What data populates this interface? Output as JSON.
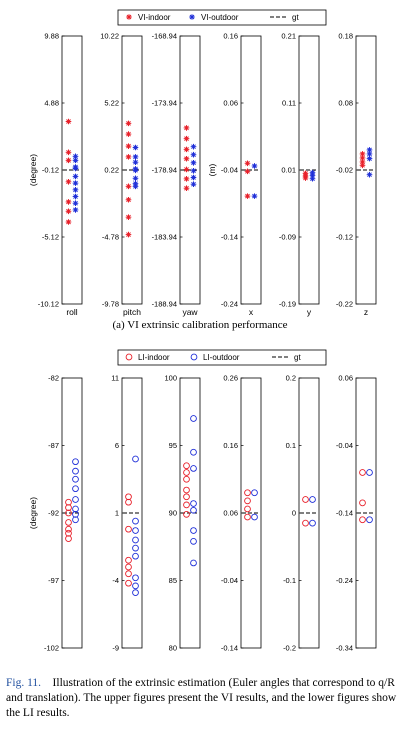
{
  "figure": {
    "caption_label": "Fig. 11.",
    "caption_text": "Illustration of the extrinsic estimation (Euler angles that correspond to q/R and translation). The upper figures present the VI results, and the lower figures show the LI results.",
    "colors": {
      "indoor": "#e8202a",
      "outdoor": "#1f2fd8",
      "gt": "#000000"
    }
  },
  "chart_data": [
    {
      "type": "scatter",
      "title": "(a) VI extrinsic calibration performance",
      "legend": [
        "VI-indoor",
        "VI-outdoor",
        "gt"
      ],
      "legend_position": "top",
      "marker": "asterisk",
      "panels": [
        {
          "xlabel": "roll",
          "ylabel": "(degree)",
          "ticks": [
            "9.88",
            "4.88",
            "-0.12",
            "-5.12",
            "-10.12"
          ],
          "ylim": [
            -10.12,
            9.88
          ],
          "gt": -0.12,
          "indoor": [
            3.5,
            1.2,
            0.6,
            -1.0,
            -2.5,
            -3.2,
            -4.0
          ],
          "outdoor": [
            -1.1,
            -0.6,
            0.1,
            0.6,
            0.9,
            -1.6,
            -2.1,
            -2.6,
            -3.1,
            0.0
          ]
        },
        {
          "xlabel": "pitch",
          "ylabel": "",
          "ticks": [
            "10.22",
            "5.22",
            "0.22",
            "-4.78",
            "-9.78"
          ],
          "ylim": [
            -9.78,
            10.22
          ],
          "gt": 0.22,
          "indoor": [
            3.7,
            2.9,
            2.0,
            1.2,
            -1.0,
            -2.0,
            -3.3,
            -4.6
          ],
          "outdoor": [
            -1.0,
            -0.4,
            0.2,
            0.8,
            1.2,
            1.9,
            -0.8,
            0.3
          ]
        },
        {
          "xlabel": "yaw",
          "ylabel": "",
          "ticks": [
            "-168.94",
            "-173.94",
            "-178.94",
            "-183.94",
            "-188.94"
          ],
          "ylim": [
            -188.94,
            -168.94
          ],
          "gt": -178.94,
          "indoor": [
            -175.8,
            -176.6,
            -177.4,
            -178.1,
            -178.9,
            -179.6,
            -180.3
          ],
          "outdoor": [
            -177.2,
            -177.8,
            -178.4,
            -179.0,
            -179.5,
            -180.0
          ]
        },
        {
          "xlabel": "x",
          "ylabel": "(m)",
          "ticks": [
            "0.16",
            "0.06",
            "-0.04",
            "-0.14",
            "-0.24"
          ],
          "ylim": [
            -0.24,
            0.16
          ],
          "gt": -0.04,
          "indoor": [
            -0.03,
            -0.042,
            -0.079
          ],
          "outdoor": [
            -0.034,
            -0.079
          ]
        },
        {
          "xlabel": "y",
          "ylabel": "",
          "ticks": [
            "0.21",
            "0.11",
            "0.01",
            "-0.09",
            "-0.19"
          ],
          "ylim": [
            -0.19,
            0.21
          ],
          "gt": 0.01,
          "indoor": [
            0.005,
            0.001,
            -0.002
          ],
          "outdoor": [
            0.006,
            0.002,
            -0.003
          ]
        },
        {
          "xlabel": "z",
          "ylabel": "",
          "ticks": [
            "0.18",
            "0.08",
            "-0.02",
            "-0.12",
            "-0.22"
          ],
          "ylim": [
            -0.22,
            0.18
          ],
          "gt": -0.02,
          "indoor": [
            0.004,
            -0.002,
            -0.008,
            -0.013
          ],
          "outdoor": [
            0.01,
            0.004,
            -0.003,
            -0.027
          ]
        }
      ]
    },
    {
      "type": "scatter",
      "title": "(b) LI extrinsic calibration performance",
      "legend": [
        "LI-indoor",
        "LI-outdoor",
        "gt"
      ],
      "legend_position": "top",
      "marker": "circle",
      "panels": [
        {
          "xlabel": "",
          "ylabel": "(degree)",
          "ticks": [
            "-82",
            "-87",
            "-92",
            "-97",
            "-102"
          ],
          "ylim": [
            -102,
            -82
          ],
          "gt": -92,
          "indoor": [
            -91.2,
            -91.6,
            -92.0,
            -92.7,
            -93.2,
            -93.5,
            -93.9
          ],
          "outdoor": [
            -88.2,
            -88.9,
            -89.5,
            -90.2,
            -91.0,
            -91.7,
            -92.1,
            -92.5
          ]
        },
        {
          "xlabel": "",
          "ylabel": "",
          "ticks": [
            "11",
            "6",
            "1",
            "-4",
            "-9"
          ],
          "ylim": [
            -9,
            11
          ],
          "gt": 1,
          "indoor": [
            2.2,
            1.8,
            -0.2,
            -2.5,
            -3.0,
            -3.5,
            -4.2
          ],
          "outdoor": [
            5.0,
            0.4,
            -0.3,
            -1.0,
            -1.6,
            -2.2,
            -3.8,
            -4.4,
            -4.9
          ]
        },
        {
          "xlabel": "",
          "ylabel": "",
          "ticks": [
            "100",
            "95",
            "90",
            "85",
            "80"
          ],
          "ylim": [
            80,
            100
          ],
          "gt": 90,
          "indoor": [
            93.5,
            93.0,
            92.5,
            91.7,
            91.2,
            90.6,
            89.9
          ],
          "outdoor": [
            97.0,
            94.5,
            93.3,
            90.7,
            90.2,
            88.7,
            87.9,
            86.3
          ]
        },
        {
          "xlabel": "",
          "ylabel": "",
          "ticks": [
            "0.26",
            "0.16",
            "0.06",
            "-0.04",
            "-0.14"
          ],
          "ylim": [
            -0.14,
            0.26
          ],
          "gt": 0.06,
          "indoor": [
            0.09,
            0.078,
            0.066,
            0.054
          ],
          "outdoor": [
            0.09,
            0.054
          ]
        },
        {
          "xlabel": "",
          "ylabel": "",
          "ticks": [
            "0.2",
            "0.1",
            "0",
            "-0.1",
            "-0.2"
          ],
          "ylim": [
            -0.2,
            0.2
          ],
          "gt": 0,
          "indoor": [
            0.02,
            -0.015
          ],
          "outdoor": [
            0.02,
            -0.015
          ]
        },
        {
          "xlabel": "",
          "ylabel": "",
          "ticks": [
            "0.06",
            "-0.04",
            "-0.14",
            "-0.24",
            "-0.34"
          ],
          "ylim": [
            -0.34,
            0.06
          ],
          "gt": -0.14,
          "indoor": [
            -0.08,
            -0.125,
            -0.15
          ],
          "outdoor": [
            -0.08,
            -0.15
          ]
        }
      ]
    }
  ]
}
